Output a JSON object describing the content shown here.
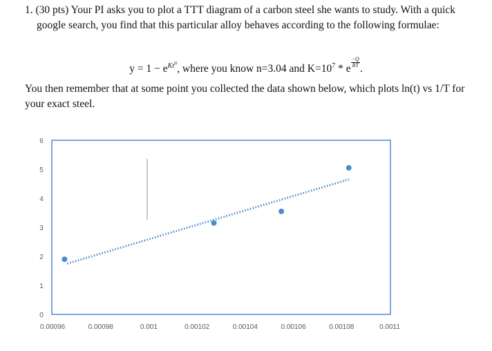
{
  "problem": {
    "intro": "1. (30 pts) Your PI asks you to plot a TTT diagram of a carbon steel she wants to study. With a quick google search, you find that this particular alloy behaves according to the following formulae:",
    "formula": {
      "lhs": "y = 1 − e",
      "exp_k": "Kt",
      "exp_n": "n",
      "middle": ", where you know n=3.04 and K=10",
      "seven": "7",
      "star_e": " * e",
      "frac_num": "−Q",
      "frac_den": "RT",
      "end": "."
    },
    "followup": "You then remember that at some point you collected the data shown below, which plots ln(t) vs 1/T for your exact steel."
  },
  "chart_data": {
    "type": "scatter",
    "x": [
      0.000965,
      0.001027,
      0.001055,
      0.001083
    ],
    "y": [
      1.9,
      3.15,
      3.55,
      5.05
    ],
    "trendline": {
      "x": [
        0.000965,
        0.001083
      ],
      "y": [
        1.75,
        4.65
      ]
    },
    "xlim": [
      0.00096,
      0.0011
    ],
    "ylim": [
      0,
      6
    ],
    "xticks": [
      "0.00096",
      "0.00098",
      "0.001",
      "0.00102",
      "0.00104",
      "0.00106",
      "0.00108",
      "0.0011"
    ],
    "yticks": [
      "0",
      "1",
      "2",
      "3",
      "4",
      "5",
      "6"
    ],
    "colors": {
      "marker": "#4a8ad1",
      "frame": "#4a8ad1",
      "trend": "#4a8ad1"
    }
  }
}
